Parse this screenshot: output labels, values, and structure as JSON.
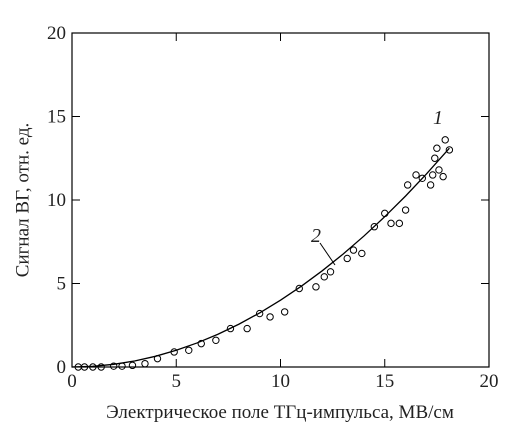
{
  "chart_data": {
    "type": "scatter",
    "x_label": "Электрическое поле ТГц-импульса, МВ/см",
    "y_label": "Сигнал ВГ, отн. ед.",
    "xlim": [
      0,
      20
    ],
    "ylim": [
      0,
      20
    ],
    "xticks": [
      0,
      5,
      10,
      15,
      20
    ],
    "yticks": [
      0,
      5,
      10,
      15,
      20
    ],
    "series": [
      {
        "name": "1",
        "type": "scatter",
        "color": "#000000",
        "x": [
          0.3,
          0.6,
          1.0,
          1.4,
          2.0,
          2.4,
          2.9,
          3.5,
          4.1,
          4.9,
          5.6,
          6.2,
          6.9,
          7.6,
          8.4,
          9.0,
          9.5,
          10.2,
          10.9,
          11.7,
          12.1,
          12.4,
          13.2,
          13.5,
          13.9,
          14.5,
          15.0,
          15.3,
          15.7,
          16.0,
          16.1,
          16.5,
          16.8,
          17.2,
          17.3,
          17.4,
          17.5,
          17.6,
          17.8,
          17.9,
          18.1
        ],
        "values": [
          0,
          0,
          0,
          0,
          0.05,
          0.05,
          0.1,
          0.2,
          0.5,
          0.9,
          1.0,
          1.4,
          1.6,
          2.3,
          2.3,
          3.2,
          3.0,
          3.3,
          4.7,
          4.8,
          5.4,
          5.7,
          6.5,
          7.0,
          6.8,
          8.4,
          9.2,
          8.6,
          8.6,
          9.4,
          10.9,
          11.5,
          11.3,
          10.9,
          11.5,
          12.5,
          13.1,
          11.8,
          11.4,
          13.6,
          13.0
        ]
      },
      {
        "name": "2",
        "type": "line",
        "color": "#000000",
        "x": [
          0,
          1,
          2,
          3,
          4,
          5,
          6,
          7,
          8,
          9,
          10,
          11,
          12,
          13,
          14,
          15,
          16,
          17,
          18,
          18.1
        ],
        "values": [
          0,
          0.04,
          0.16,
          0.36,
          0.64,
          1,
          1.44,
          1.96,
          2.56,
          3.24,
          4,
          4.84,
          5.76,
          6.76,
          7.84,
          9,
          10.24,
          11.56,
          12.96,
          13.1
        ]
      }
    ]
  }
}
